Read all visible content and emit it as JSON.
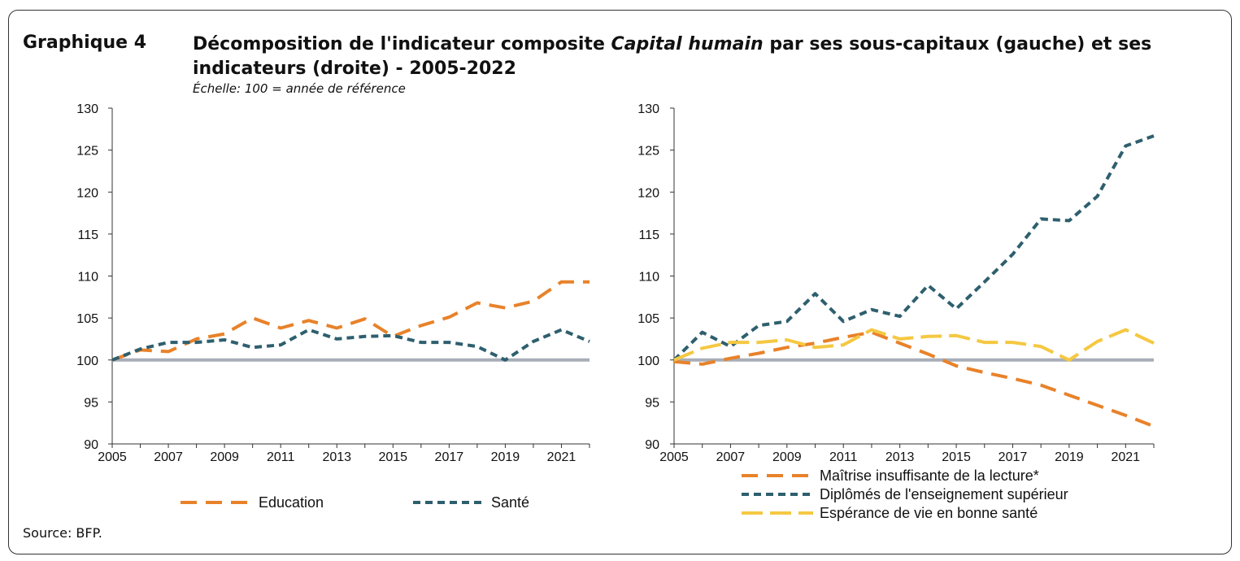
{
  "header": {
    "label": "Graphique 4",
    "title_pre": "Décomposition de l'indicateur composite ",
    "title_em": "Capital humain",
    "title_post": " par ses sous-capitaux (gauche) et ses indicateurs (droite) - 2005-2022",
    "scale_note": "Échelle: 100 = année de référence"
  },
  "footer": {
    "source": "Source: BFP."
  },
  "colors": {
    "orange": "#E8822A",
    "teal": "#2E5F6E",
    "yellow": "#F5C842",
    "baseline": "#A8AEB8"
  },
  "chart_data": [
    {
      "type": "line",
      "ylim": [
        90,
        130
      ],
      "xlim": [
        2005,
        2022
      ],
      "y_ticks": [
        "90",
        "95",
        "100",
        "105",
        "110",
        "115",
        "120",
        "125",
        "130"
      ],
      "x_ticks": [
        "2005",
        "2007",
        "2009",
        "2011",
        "2013",
        "2015",
        "2017",
        "2019",
        "2021"
      ],
      "baseline": 100,
      "legend_position": "bottom",
      "x": [
        2005,
        2006,
        2007,
        2008,
        2009,
        2010,
        2011,
        2012,
        2013,
        2014,
        2015,
        2016,
        2017,
        2018,
        2019,
        2020,
        2021,
        2022
      ],
      "series": [
        {
          "name": "Education",
          "color": "#E8822A",
          "dash": "20 11",
          "values": [
            100,
            101.2,
            101,
            102.5,
            103.1,
            105.0,
            103.8,
            104.7,
            103.8,
            104.9,
            102.8,
            104.1,
            105.1,
            106.8,
            106.2,
            107.0,
            109.3,
            109.3
          ]
        },
        {
          "name": "Santé",
          "color": "#2E5F6E",
          "dash": "9 6",
          "values": [
            100,
            101.3,
            102.1,
            102.1,
            102.4,
            101.5,
            101.8,
            103.6,
            102.5,
            102.8,
            102.9,
            102.1,
            102.1,
            101.6,
            100.0,
            102.2,
            103.6,
            102.2
          ]
        }
      ]
    },
    {
      "type": "line",
      "ylim": [
        90,
        130
      ],
      "xlim": [
        2005,
        2022
      ],
      "y_ticks": [
        "90",
        "95",
        "100",
        "105",
        "110",
        "115",
        "120",
        "125",
        "130"
      ],
      "x_ticks": [
        "2005",
        "2007",
        "2009",
        "2011",
        "2013",
        "2015",
        "2017",
        "2019",
        "2021"
      ],
      "baseline": 100,
      "legend_position": "bottom",
      "x": [
        2005,
        2006,
        2007,
        2008,
        2009,
        2010,
        2011,
        2012,
        2013,
        2014,
        2015,
        2016,
        2017,
        2018,
        2019,
        2020,
        2021,
        2022
      ],
      "series": [
        {
          "name": "Maîtrise insuffisante de la lecture*",
          "color": "#E8822A",
          "dash": "20 11",
          "values": [
            99.8,
            99.5,
            100.2,
            100.8,
            101.5,
            102.0,
            102.7,
            103.3,
            102.0,
            100.7,
            99.3,
            98.5,
            97.8,
            97.0,
            95.8,
            94.6,
            93.4,
            92.1
          ]
        },
        {
          "name": "Diplômés de l'enseignement supérieur",
          "color": "#2E5F6E",
          "dash": "9 6",
          "values": [
            100,
            103.3,
            101.6,
            104.1,
            104.6,
            107.9,
            104.6,
            106.0,
            105.2,
            108.9,
            106.1,
            109.3,
            112.6,
            116.8,
            116.6,
            119.5,
            125.5,
            126.7
          ]
        },
        {
          "name": "Espérance de vie en bonne santé",
          "color": "#F5C842",
          "dash": "26 9",
          "values": [
            100,
            101.4,
            102.1,
            102.1,
            102.4,
            101.5,
            101.8,
            103.6,
            102.5,
            102.8,
            102.9,
            102.1,
            102.1,
            101.6,
            100.0,
            102.2,
            103.6,
            102.0
          ]
        }
      ]
    }
  ]
}
